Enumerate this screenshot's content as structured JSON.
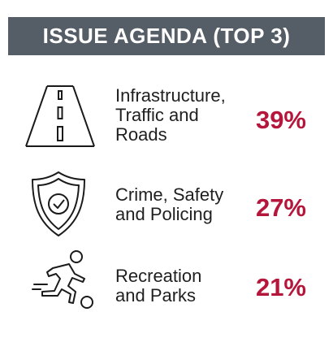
{
  "header": {
    "title": "ISSUE AGENDA (TOP 3)"
  },
  "colors": {
    "header_bg": "#555d66",
    "value": "#b5163b",
    "text": "#1f1f1f"
  },
  "items": [
    {
      "icon": "road-icon",
      "label_lines": [
        "Infrastructure,",
        "Traffic and",
        "Roads"
      ],
      "value": "39%"
    },
    {
      "icon": "shield-check-icon",
      "label_lines": [
        "Crime, Safety",
        "and Policing"
      ],
      "value": "27%"
    },
    {
      "icon": "running-person-icon",
      "label_lines": [
        "Recreation",
        "and Parks"
      ],
      "value": "21%"
    }
  ]
}
